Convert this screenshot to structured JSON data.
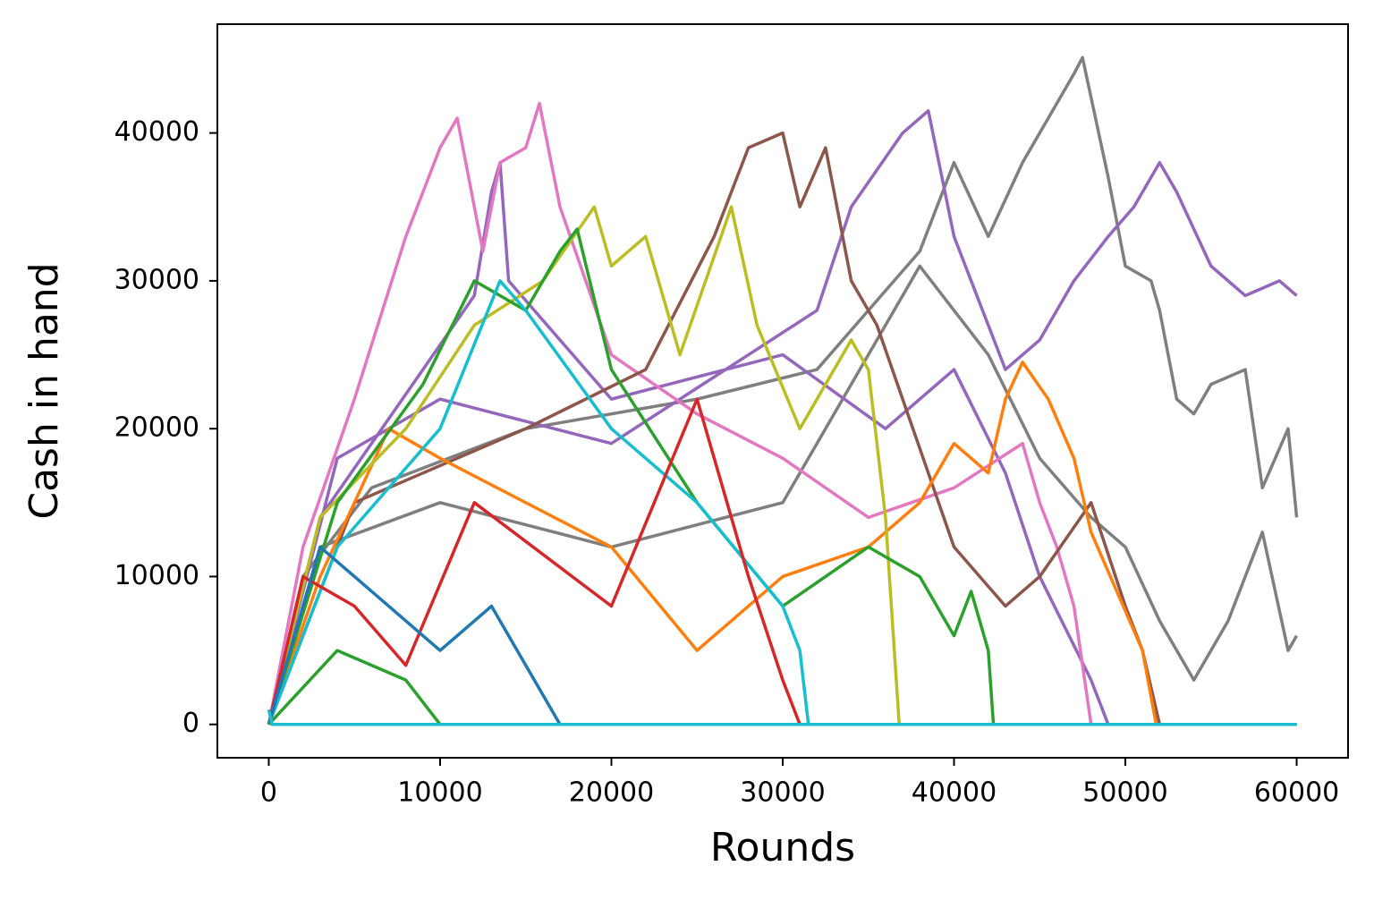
{
  "chart_data": {
    "type": "line",
    "x_label": "Rounds",
    "y_label": "Cash in hand",
    "xlim": [
      -3000,
      63000
    ],
    "xticks": [
      0,
      10000,
      20000,
      30000,
      40000,
      50000,
      60000
    ],
    "ylim": [
      -2255,
      47360
    ],
    "yticks": [
      0,
      10000,
      20000,
      30000,
      40000
    ],
    "grid": false,
    "series": [
      {
        "color": "#7f7f7f",
        "x": [
          0,
          2000,
          6000,
          15000,
          25000,
          32000,
          35000,
          38000,
          40000,
          42000,
          44000,
          47000,
          47500,
          49000,
          50000,
          51500,
          52000,
          53000,
          54000,
          55000,
          57000,
          58000,
          59500,
          60000
        ],
        "values": [
          0,
          10000,
          16000,
          20000,
          22000,
          24000,
          28000,
          32000,
          38000,
          33000,
          38000,
          44000,
          45100,
          37000,
          31000,
          30000,
          28000,
          22000,
          21000,
          23000,
          24000,
          16000,
          20000,
          14000
        ]
      },
      {
        "color": "#7f7f7f",
        "x": [
          0,
          3000,
          10000,
          20000,
          30000,
          35000,
          38000,
          42000,
          45000,
          48000,
          50000,
          52000,
          54000,
          56000,
          58000,
          59500,
          60000
        ],
        "values": [
          0,
          12000,
          15000,
          12000,
          15000,
          25000,
          31000,
          25000,
          18000,
          14000,
          12000,
          7000,
          3000,
          7000,
          13000,
          5000,
          6000
        ]
      },
      {
        "color": "#9467bd",
        "x": [
          0,
          4000,
          10000,
          20000,
          28000,
          32000,
          34000,
          37000,
          38500,
          40000,
          42000,
          43000,
          45000,
          47000,
          49000,
          50500,
          52000,
          53000,
          55000,
          57000,
          59000,
          60000
        ],
        "values": [
          0,
          18000,
          22000,
          19000,
          25000,
          28000,
          35000,
          40000,
          41500,
          33000,
          27000,
          24000,
          26000,
          30000,
          33000,
          35000,
          38000,
          36000,
          31000,
          29000,
          30000,
          29000
        ]
      },
      {
        "color": "#9467bd",
        "x": [
          0,
          3000,
          12000,
          13000,
          13500,
          14000,
          20000,
          30000,
          36000,
          40000,
          43000,
          45000,
          48000,
          49000,
          60000
        ],
        "values": [
          0,
          14000,
          29000,
          36000,
          38000,
          30000,
          22000,
          25000,
          20000,
          24000,
          17000,
          10000,
          3000,
          0,
          0
        ]
      },
      {
        "color": "#e377c2",
        "x": [
          0,
          2000,
          5000,
          8000,
          10000,
          11000,
          12500,
          13500,
          15000,
          15800,
          17000,
          20000,
          25000,
          30000,
          35000,
          40000,
          44000,
          45000,
          46000,
          47000,
          48000,
          60000
        ],
        "values": [
          0,
          12000,
          22000,
          33000,
          39000,
          41000,
          32000,
          38000,
          39000,
          42000,
          35000,
          25000,
          21000,
          18000,
          14000,
          16000,
          19000,
          15000,
          12000,
          8000,
          0,
          0
        ]
      },
      {
        "color": "#8c564b",
        "x": [
          0,
          5000,
          15000,
          22000,
          26000,
          28000,
          30000,
          31000,
          32500,
          34000,
          35500,
          37000,
          40000,
          43000,
          45000,
          48000,
          50000,
          51000,
          52000,
          60000
        ],
        "values": [
          0,
          15000,
          20000,
          24000,
          33000,
          39000,
          40000,
          35000,
          39000,
          30000,
          27000,
          22000,
          12000,
          8000,
          10000,
          15000,
          8000,
          5000,
          0,
          0
        ]
      },
      {
        "color": "#ff7f0e",
        "x": [
          0,
          3000,
          7000,
          10000,
          20000,
          25000,
          30000,
          35000,
          38000,
          40000,
          42000,
          43000,
          44000,
          45500,
          47000,
          48000,
          49500,
          51000,
          51800,
          60000
        ],
        "values": [
          0,
          10000,
          20000,
          18000,
          12000,
          5000,
          10000,
          12000,
          15000,
          19000,
          17000,
          22000,
          24500,
          22000,
          18000,
          13000,
          9000,
          5000,
          0,
          0
        ]
      },
      {
        "color": "#bcbd22",
        "x": [
          0,
          3000,
          8000,
          12000,
          16000,
          19000,
          20000,
          22000,
          24000,
          27000,
          28500,
          31000,
          34000,
          35000,
          36000,
          36800,
          60000
        ],
        "values": [
          0,
          14000,
          20000,
          27000,
          30000,
          35000,
          31000,
          33000,
          25000,
          35000,
          27000,
          20000,
          26000,
          24000,
          14000,
          0,
          0
        ]
      },
      {
        "color": "#2ca02c",
        "x": [
          0,
          4000,
          9000,
          12000,
          15000,
          17000,
          18000,
          20000,
          25000,
          30000,
          35000,
          38000,
          40000,
          41000,
          42000,
          42300,
          60000
        ],
        "values": [
          0,
          15000,
          23000,
          30000,
          28000,
          32000,
          33500,
          24000,
          15000,
          8000,
          12000,
          10000,
          6000,
          9000,
          5000,
          0,
          0
        ]
      },
      {
        "color": "#17becf",
        "x": [
          0,
          4000,
          10000,
          13500,
          15000,
          20000,
          25000,
          30000,
          31000,
          31500,
          60000
        ],
        "values": [
          0,
          12000,
          20000,
          30000,
          28000,
          20000,
          15000,
          8000,
          5000,
          0,
          0
        ]
      },
      {
        "color": "#d62728",
        "x": [
          0,
          2000,
          5000,
          8000,
          12000,
          20000,
          25000,
          28000,
          30000,
          31000,
          60000
        ],
        "values": [
          0,
          10000,
          8000,
          4000,
          15000,
          8000,
          22000,
          10000,
          3000,
          0,
          0
        ]
      },
      {
        "color": "#1f77b4",
        "x": [
          0,
          3000,
          6000,
          10000,
          13000,
          17000,
          60000
        ],
        "values": [
          0,
          12000,
          9000,
          5000,
          8000,
          0,
          0
        ]
      },
      {
        "color": "#2ca02c",
        "x": [
          0,
          4000,
          8000,
          10000,
          60000
        ],
        "values": [
          0,
          5000,
          3000,
          0,
          0
        ]
      },
      {
        "color": "#17becf",
        "x": [
          0,
          200,
          60000
        ],
        "values": [
          1000,
          0,
          0
        ]
      }
    ]
  }
}
